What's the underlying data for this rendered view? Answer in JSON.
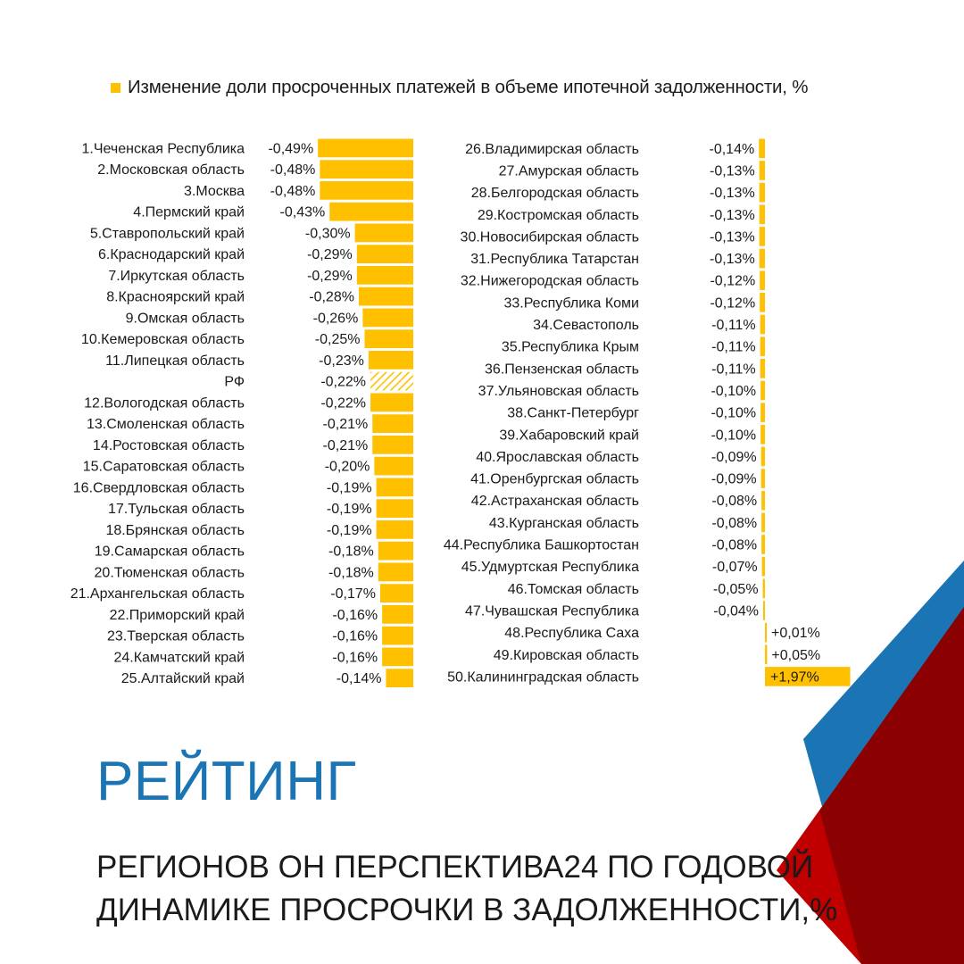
{
  "legend": {
    "label": "Изменение доли просроченных платежей в объеме ипотечной задолженности, %",
    "color": "#ffc000"
  },
  "title": "РЕЙТИНГ",
  "subtitle_line1": "РЕГИОНОВ ОН ПЕРСПЕКТИВА24 ПО ГОДОВОЙ",
  "subtitle_line2": "ДИНАМИКЕ ПРОСРОЧКИ В ЗАДОЛЖЕННОСТИ,%",
  "colors": {
    "bar": "#ffc000",
    "title": "#1b75b5",
    "deco_blue": "#1b75b5",
    "deco_red": "#c00000",
    "deco_darkred": "#8b0000"
  },
  "chart_data": {
    "type": "bar",
    "orientation": "horizontal",
    "ylabel": "",
    "xlabel": "",
    "columns": [
      {
        "entries": [
          {
            "label": "1.Чеченская Республика",
            "value": -0.49,
            "text": "-0,49%"
          },
          {
            "label": "2.Московская область",
            "value": -0.48,
            "text": "-0,48%"
          },
          {
            "label": "3.Москва",
            "value": -0.48,
            "text": "-0,48%"
          },
          {
            "label": "4.Пермский край",
            "value": -0.43,
            "text": "-0,43%"
          },
          {
            "label": "5.Ставропольский край",
            "value": -0.3,
            "text": "-0,30%"
          },
          {
            "label": "6.Краснодарский край",
            "value": -0.29,
            "text": "-0,29%"
          },
          {
            "label": "7.Иркутская область",
            "value": -0.29,
            "text": "-0,29%"
          },
          {
            "label": "8.Красноярский край",
            "value": -0.28,
            "text": "-0,28%"
          },
          {
            "label": "9.Омская область",
            "value": -0.26,
            "text": "-0,26%"
          },
          {
            "label": "10.Кемеровская область",
            "value": -0.25,
            "text": "-0,25%"
          },
          {
            "label": "11.Липецкая область",
            "value": -0.23,
            "text": "-0,23%"
          },
          {
            "label": "РФ",
            "value": -0.22,
            "text": "-0,22%",
            "highlight": true
          },
          {
            "label": "12.Вологодская область",
            "value": -0.22,
            "text": "-0,22%"
          },
          {
            "label": "13.Смоленская область",
            "value": -0.21,
            "text": "-0,21%"
          },
          {
            "label": "14.Ростовская область",
            "value": -0.21,
            "text": "-0,21%"
          },
          {
            "label": "15.Саратовская область",
            "value": -0.2,
            "text": "-0,20%"
          },
          {
            "label": "16.Свердловская область",
            "value": -0.19,
            "text": "-0,19%"
          },
          {
            "label": "17.Тульская область",
            "value": -0.19,
            "text": "-0,19%"
          },
          {
            "label": "18.Брянская область",
            "value": -0.19,
            "text": "-0,19%"
          },
          {
            "label": "19.Самарская область",
            "value": -0.18,
            "text": "-0,18%"
          },
          {
            "label": "20.Тюменская область",
            "value": -0.18,
            "text": "-0,18%"
          },
          {
            "label": "21.Архангельская область",
            "value": -0.17,
            "text": "-0,17%"
          },
          {
            "label": "22.Приморский край",
            "value": -0.16,
            "text": "-0,16%"
          },
          {
            "label": "23.Тверская область",
            "value": -0.16,
            "text": "-0,16%"
          },
          {
            "label": "24.Камчатский край",
            "value": -0.16,
            "text": "-0,16%"
          },
          {
            "label": "25.Алтайский край",
            "value": -0.14,
            "text": "-0,14%"
          }
        ]
      },
      {
        "entries": [
          {
            "label": "26.Владимирская область",
            "value": -0.14,
            "text": "-0,14%"
          },
          {
            "label": "27.Амурская область",
            "value": -0.13,
            "text": "-0,13%"
          },
          {
            "label": "28.Белгородская область",
            "value": -0.13,
            "text": "-0,13%"
          },
          {
            "label": "29.Костромская область",
            "value": -0.13,
            "text": "-0,13%"
          },
          {
            "label": "30.Новосибирская область",
            "value": -0.13,
            "text": "-0,13%"
          },
          {
            "label": "31.Республика Татарстан",
            "value": -0.13,
            "text": "-0,13%"
          },
          {
            "label": "32.Нижегородская область",
            "value": -0.12,
            "text": "-0,12%"
          },
          {
            "label": "33.Республика Коми",
            "value": -0.12,
            "text": "-0,12%"
          },
          {
            "label": "34.Севастополь",
            "value": -0.11,
            "text": "-0,11%"
          },
          {
            "label": "35.Республика Крым",
            "value": -0.11,
            "text": "-0,11%"
          },
          {
            "label": "36.Пензенская область",
            "value": -0.11,
            "text": "-0,11%"
          },
          {
            "label": "37.Ульяновская область",
            "value": -0.1,
            "text": "-0,10%"
          },
          {
            "label": "38.Санкт-Петербург",
            "value": -0.1,
            "text": "-0,10%"
          },
          {
            "label": "39.Хабаровский край",
            "value": -0.1,
            "text": "-0,10%"
          },
          {
            "label": "40.Ярославская область",
            "value": -0.09,
            "text": "-0,09%"
          },
          {
            "label": "41.Оренбургская область",
            "value": -0.09,
            "text": "-0,09%"
          },
          {
            "label": "42.Астраханская область",
            "value": -0.08,
            "text": "-0,08%"
          },
          {
            "label": "43.Курганская область",
            "value": -0.08,
            "text": "-0,08%"
          },
          {
            "label": "44.Республика Башкортостан",
            "value": -0.08,
            "text": "-0,08%"
          },
          {
            "label": "45.Удмуртская Республика",
            "value": -0.07,
            "text": "-0,07%"
          },
          {
            "label": "46.Томская область",
            "value": -0.05,
            "text": "-0,05%"
          },
          {
            "label": "47.Чувашская Республика",
            "value": -0.04,
            "text": "-0,04%"
          },
          {
            "label": "48.Республика Саха",
            "value": 0.01,
            "text": "+0,01%"
          },
          {
            "label": "49.Кировская область",
            "value": 0.05,
            "text": "+0,05%"
          },
          {
            "label": "50.Калининградская область",
            "value": 1.97,
            "text": "+1,97%"
          }
        ]
      }
    ]
  }
}
